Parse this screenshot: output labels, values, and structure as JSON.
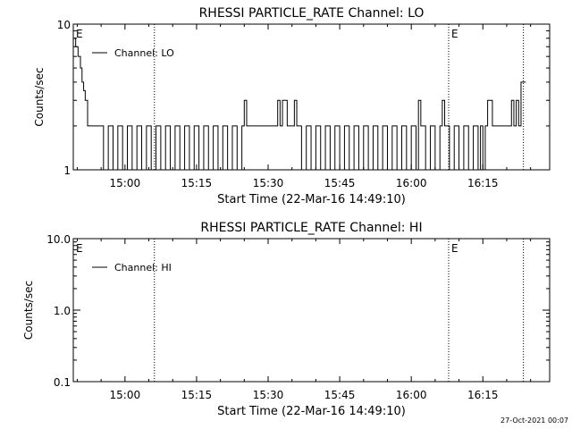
{
  "footer_timestamp": "27-Oct-2021 00:07",
  "chart_data": [
    {
      "type": "line",
      "title": "RHESSI PARTICLE_RATE Channel: LO",
      "xlabel": "Start Time (22-Mar-16 14:49:10)",
      "ylabel": "Counts/sec",
      "yscale": "log",
      "ylim": [
        1,
        10
      ],
      "ytick_labels": [
        "1",
        "10"
      ],
      "ytick_values": [
        1,
        10
      ],
      "xlim": [
        "14:49:10",
        "16:29:00"
      ],
      "xtick_labels": [
        "15:00",
        "15:15",
        "15:30",
        "15:45",
        "16:00",
        "16:15"
      ],
      "grid": false,
      "legend": "top-left",
      "series": [
        {
          "name": "Channel: LO",
          "x": [
            "14:49:10",
            "14:49:40",
            "14:50:10",
            "14:50:40",
            "14:51:00",
            "14:51:20",
            "14:51:40",
            "14:52:10",
            "14:55:00",
            "14:55:30",
            "14:56:30",
            "14:57:30",
            "14:58:30",
            "14:59:30",
            "15:00:30",
            "15:01:30",
            "15:02:30",
            "15:03:30",
            "15:04:30",
            "15:05:30",
            "15:06:30",
            "15:07:30",
            "15:08:30",
            "15:09:30",
            "15:10:30",
            "15:11:30",
            "15:12:30",
            "15:13:30",
            "15:14:30",
            "15:15:30",
            "15:16:30",
            "15:17:30",
            "15:18:30",
            "15:19:30",
            "15:20:30",
            "15:21:30",
            "15:22:30",
            "15:23:30",
            "15:24:30",
            "15:25:00",
            "15:25:30",
            "15:26:30",
            "15:28:00",
            "15:29:30",
            "15:31:00",
            "15:32:00",
            "15:32:30",
            "15:33:00",
            "15:34:00",
            "15:35:00",
            "15:35:30",
            "15:36:00",
            "15:37:00",
            "15:38:00",
            "15:39:00",
            "15:40:00",
            "15:41:00",
            "15:42:00",
            "15:43:00",
            "15:44:00",
            "15:45:00",
            "15:46:00",
            "15:47:00",
            "15:48:00",
            "15:49:00",
            "15:50:00",
            "15:51:00",
            "15:52:00",
            "15:53:00",
            "15:54:00",
            "15:55:00",
            "15:56:00",
            "15:57:00",
            "15:58:00",
            "15:59:00",
            "16:00:00",
            "16:01:00",
            "16:01:30",
            "16:02:00",
            "16:03:00",
            "16:04:00",
            "16:05:00",
            "16:06:00",
            "16:06:30",
            "16:07:00",
            "16:08:00",
            "16:09:00",
            "16:10:00",
            "16:11:00",
            "16:12:00",
            "16:13:00",
            "16:14:00",
            "16:14:30",
            "16:15:00",
            "16:15:30",
            "16:16:00",
            "16:17:00",
            "16:18:00",
            "16:19:00",
            "16:20:00",
            "16:21:00",
            "16:21:30",
            "16:22:00",
            "16:22:30",
            "16:23:00",
            "16:23:30",
            "16:24:00"
          ],
          "values": [
            8,
            7,
            6,
            5,
            4,
            3.5,
            3,
            2,
            2,
            1,
            2,
            1,
            2,
            1,
            2,
            1,
            2,
            1,
            2,
            1,
            2,
            1,
            2,
            1,
            2,
            1,
            2,
            1,
            2,
            1,
            2,
            1,
            2,
            1,
            2,
            1,
            2,
            1,
            2,
            3,
            2,
            2,
            2,
            2,
            2,
            3,
            2,
            3,
            2,
            2,
            3,
            2,
            1,
            2,
            1,
            2,
            1,
            2,
            1,
            2,
            1,
            2,
            1,
            2,
            1,
            2,
            1,
            2,
            1,
            2,
            1,
            2,
            1,
            2,
            1,
            2,
            1,
            3,
            2,
            1,
            2,
            1,
            2,
            3,
            2,
            1,
            2,
            1,
            2,
            1,
            2,
            1,
            2,
            1,
            2,
            3,
            2,
            2,
            2,
            2,
            3,
            2,
            3,
            2,
            4,
            4,
            4
          ]
        }
      ],
      "annotations": [
        {
          "text": "E",
          "x": "14:49:10"
        },
        {
          "text": "E",
          "x": "16:07:50"
        }
      ],
      "vlines": [
        "15:06:10",
        "16:07:50",
        "16:23:30"
      ]
    },
    {
      "type": "line",
      "title": "RHESSI PARTICLE_RATE Channel: HI",
      "xlabel": "Start Time (22-Mar-16 14:49:10)",
      "ylabel": "Counts/sec",
      "yscale": "log",
      "ylim": [
        0.1,
        10
      ],
      "ytick_labels": [
        "0.1",
        "1.0",
        "10.0"
      ],
      "ytick_values": [
        0.1,
        1,
        10
      ],
      "xlim": [
        "14:49:10",
        "16:29:00"
      ],
      "xtick_labels": [
        "15:00",
        "15:15",
        "15:30",
        "15:45",
        "16:00",
        "16:15"
      ],
      "grid": false,
      "legend": "top-left",
      "series": [
        {
          "name": "Channel: HI",
          "x": [],
          "values": []
        }
      ],
      "annotations": [
        {
          "text": "E",
          "x": "14:49:10"
        },
        {
          "text": "E",
          "x": "16:07:50"
        }
      ],
      "vlines": [
        "15:06:10",
        "16:07:50",
        "16:23:30"
      ]
    }
  ]
}
